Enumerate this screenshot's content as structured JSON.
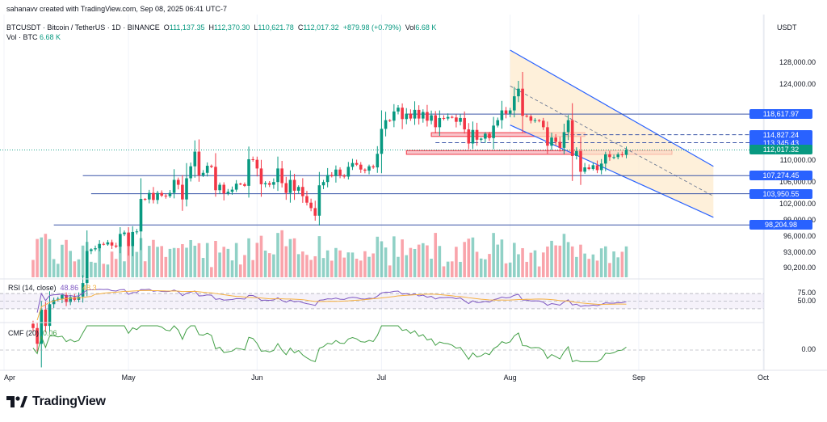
{
  "header": {
    "published_by": "sahanavv created with TradingView.com, Sep 08, 2025 06:41 UTC-7",
    "symbol_desc": "BTCUSDT · Bitcoin / TetherUS · 1D · BINANCE",
    "ohlc": {
      "o_label": "O",
      "o": "111,137.35",
      "h_label": "H",
      "h": "112,370.30",
      "l_label": "L",
      "l": "110,621.78",
      "c_label": "C",
      "c": "112,017.32",
      "change": "+879.98 (+0.79%)",
      "vol_label": "Vol",
      "vol": "6.68 K"
    },
    "vol_row": {
      "label": "Vol · BTC",
      "value": "6.68 K"
    },
    "currency": "USDT"
  },
  "logo": {
    "text": "TradingView"
  },
  "colors": {
    "up": "#089981",
    "down": "#f23645",
    "level": "#2962ff",
    "price": "#089981",
    "rsi": "#7e57c2",
    "rsi_ma": "#f5b041",
    "cmf": "#43a047",
    "channel": "#fdeacb"
  },
  "chart_data": [
    {
      "type": "candlestick",
      "title": "BTCUSDT · Bitcoin / TetherUS · 1D · BINANCE",
      "ylabel": "USDT",
      "ylim": [
        89000,
        131000
      ],
      "y_ticks": [
        "128,000.00",
        "124,000.00",
        "110,000.00",
        "106,000.00",
        "102,000.00",
        "99,000.00",
        "96,000.00",
        "93,000.00",
        "90,200.00"
      ],
      "x_ticks": [
        "Apr",
        "May",
        "Jun",
        "Jul",
        "Aug",
        "Sep",
        "Oct"
      ],
      "x_tick_dates": [
        "2025-04-01",
        "2025-05-01",
        "2025-06-01",
        "2025-07-01",
        "2025-08-01",
        "2025-09-01",
        "2025-10-01"
      ],
      "first_bar_date": "2025-04-08",
      "series": [
        {
          "name": "BTCUSDT",
          "close": [
            79200,
            76300,
            82600,
            79600,
            83600,
            84400,
            84600,
            85300,
            84000,
            84900,
            84400,
            85000,
            87500,
            93400,
            93700,
            93900,
            94700,
            94600,
            95000,
            94400,
            94200,
            96500,
            96800,
            94300,
            96900,
            97000,
            103000,
            102900,
            104100,
            102800,
            104100,
            103600,
            103500,
            104100,
            106500,
            105600,
            102900,
            106800,
            109000,
            111700,
            107300,
            107800,
            109100,
            108900,
            104600,
            105600,
            104000,
            104300,
            104700,
            105800,
            105700,
            105400,
            110300,
            110200,
            108600,
            105700,
            105900,
            105600,
            106100,
            108600,
            105900,
            104100,
            106500,
            104500,
            105200,
            103500,
            102300,
            101300,
            99900,
            105500,
            106100,
            107400,
            107200,
            108400,
            107300,
            107100,
            108900,
            109600,
            109300,
            108400,
            108200,
            109000,
            108800,
            111300,
            115900,
            117500,
            117400,
            119100,
            119800,
            117700,
            118700,
            117800,
            119400,
            117800,
            119000,
            117400,
            118400,
            116200,
            117900,
            117800,
            118100,
            118000,
            117200,
            117900,
            115800,
            113200,
            115700,
            113900,
            114100,
            115000,
            114200,
            116500,
            117500,
            119300,
            118700,
            119300,
            121900,
            123300,
            118300,
            118200,
            117400,
            117500,
            117400,
            116200,
            112800,
            114300,
            113500,
            112400,
            115300,
            117500,
            110900,
            111800,
            108000,
            108800,
            108500,
            109200,
            108300,
            109500,
            111200,
            110700,
            110700,
            111200,
            111100,
            112000
          ]
        }
      ],
      "horizontal_levels": [
        118617.97,
        114827.24,
        113345.43,
        107274.45,
        103950.55,
        98204.98
      ],
      "level_labels": [
        "118,617.97",
        "114,827.24",
        "113,345.43",
        "107,274.45",
        "103,950.55",
        "98,204.98"
      ],
      "last_price": 112017.32,
      "last_price_label": "112,017.32",
      "channel": {
        "upper": [
          [
            "2025-08-01",
            130400
          ],
          [
            "2025-09-19",
            109000
          ]
        ],
        "lower": [
          [
            "2025-08-01",
            116600
          ],
          [
            "2025-09-19",
            99600
          ]
        ],
        "mid": [
          [
            "2025-08-01",
            123800
          ],
          [
            "2025-09-19",
            103500
          ]
        ]
      },
      "zones": [
        {
          "from": "2025-07-13",
          "to": "2025-08-19",
          "low": 114500,
          "high": 115200
        },
        {
          "from": "2025-07-07",
          "to": "2025-09-09",
          "low": 111200,
          "high": 111900
        }
      ]
    },
    {
      "type": "bar",
      "name": "Vol · BTC",
      "last_value": "6.68 K"
    },
    {
      "type": "line",
      "title": "RSI (14, close)",
      "label": "RSI (14, close)",
      "last_value": "48.86",
      "ma_value": "48.3",
      "y_ticks": [
        "75.00",
        "50.00"
      ],
      "bands": [
        70,
        30
      ]
    },
    {
      "type": "line",
      "title": "CMF (20)",
      "label": "CMF (20)",
      "last_value": "0.06",
      "y_ticks": [
        "0.00"
      ]
    }
  ]
}
